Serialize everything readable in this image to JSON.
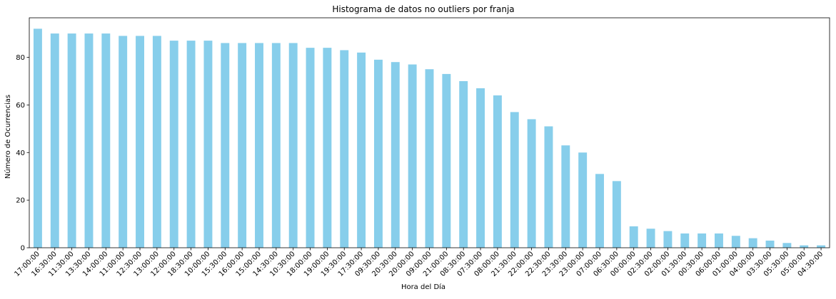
{
  "chart_data": {
    "type": "bar",
    "title": "Histograma de datos no outliers por franja",
    "xlabel": "Hora del Día",
    "ylabel": "Número de Ocurrencias",
    "ylim": [
      0,
      96.6
    ],
    "yticks": [
      0,
      20,
      40,
      60,
      80
    ],
    "bar_color": "#87ceeb",
    "grid": false,
    "legend": "none",
    "categories": [
      "17:00:00",
      "16:30:00",
      "11:30:00",
      "13:30:00",
      "14:00:00",
      "11:00:00",
      "12:30:00",
      "13:00:00",
      "12:00:00",
      "18:30:00",
      "10:00:00",
      "15:30:00",
      "16:00:00",
      "15:00:00",
      "14:30:00",
      "10:30:00",
      "18:00:00",
      "19:00:00",
      "19:30:00",
      "17:30:00",
      "09:30:00",
      "20:30:00",
      "20:00:00",
      "09:00:00",
      "21:00:00",
      "08:30:00",
      "07:30:00",
      "08:00:00",
      "21:30:00",
      "22:00:00",
      "22:30:00",
      "23:30:00",
      "23:00:00",
      "07:00:00",
      "06:30:00",
      "00:00:00",
      "02:30:00",
      "02:00:00",
      "01:30:00",
      "00:30:00",
      "06:00:00",
      "01:00:00",
      "04:00:00",
      "03:30:00",
      "05:30:00",
      "05:00:00",
      "04:30:00"
    ],
    "values": [
      92,
      90,
      90,
      90,
      90,
      89,
      89,
      89,
      87,
      87,
      87,
      86,
      86,
      86,
      86,
      86,
      84,
      84,
      83,
      82,
      79,
      78,
      77,
      75,
      73,
      70,
      67,
      64,
      57,
      54,
      51,
      43,
      40,
      31,
      28,
      9,
      8,
      7,
      6,
      6,
      6,
      5,
      4,
      3,
      2,
      1,
      1
    ]
  }
}
